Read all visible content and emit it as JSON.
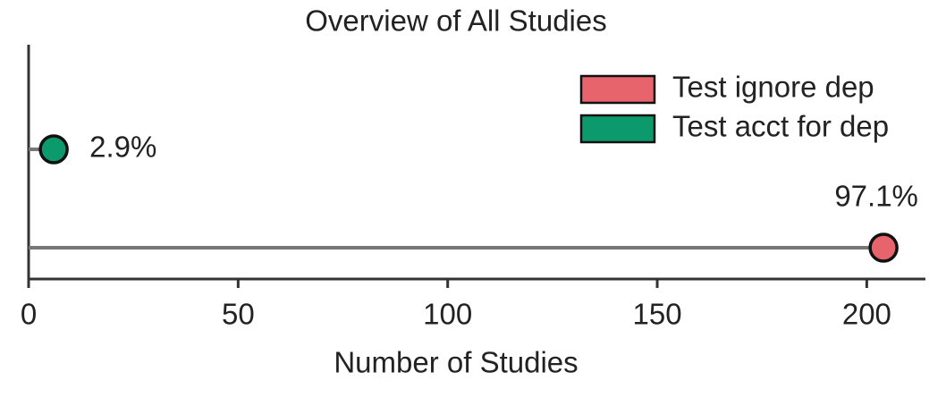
{
  "chart_data": {
    "type": "lollipop",
    "title": "Overview of All Studies",
    "x_label": "Number of Studies",
    "series": [
      {
        "name": "Test ignore dep",
        "color": "#e8646c",
        "values": [
          204
        ],
        "value_labels": [
          "97.1%"
        ]
      },
      {
        "name": "Test acct for dep",
        "color": "#0c9a6c",
        "values": [
          6
        ],
        "value_labels": [
          "2.9%"
        ]
      }
    ],
    "xlim": [
      0,
      214
    ],
    "xticks": [
      0,
      50,
      100,
      150,
      200
    ],
    "legend": "upper right"
  }
}
